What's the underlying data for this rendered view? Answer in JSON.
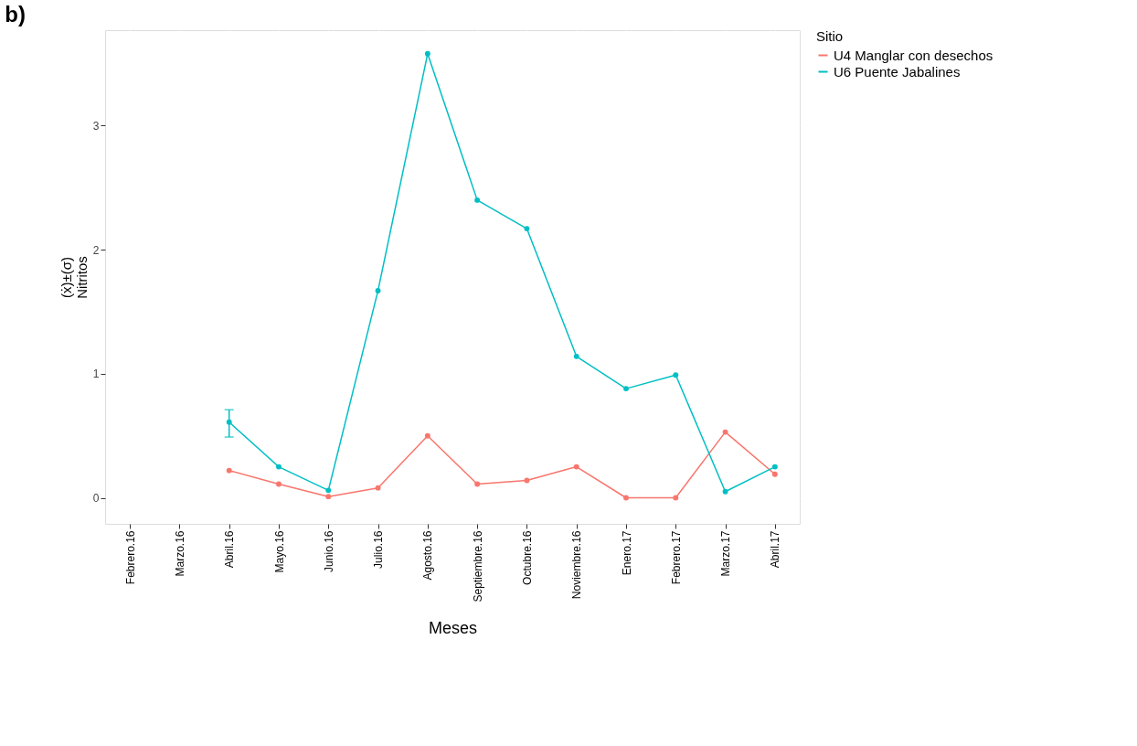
{
  "chart_data": {
    "type": "line",
    "title": "b)",
    "xlabel": "Meses",
    "ylabel": "(ẋ)±(σ)\nNitritos",
    "legend_title": "Sitio",
    "categories": [
      "Febrero.16",
      "Marzo.16",
      "Abril.16",
      "Mayo.16",
      "Junio.16",
      "Julio.16",
      "Agosto.16",
      "Septiembre.16",
      "Octubre.16",
      "Noviembre.16",
      "Enero.17",
      "Febrero.17",
      "Marzo.17",
      "Abril.17"
    ],
    "series": [
      {
        "name": "U4 Manglar con desechos",
        "color": "#f8766d",
        "values": [
          null,
          null,
          0.22,
          0.11,
          0.01,
          0.08,
          0.5,
          0.11,
          0.14,
          0.25,
          0.0,
          0.0,
          0.53,
          0.19
        ]
      },
      {
        "name": "U6 Puente Jabalines",
        "color": "#00bfc4",
        "values": [
          null,
          null,
          0.61,
          0.25,
          0.06,
          1.67,
          3.58,
          2.4,
          2.17,
          1.14,
          0.88,
          0.99,
          0.05,
          0.25
        ],
        "errors": [
          null,
          null,
          [
            0.49,
            0.71
          ],
          null,
          null,
          null,
          null,
          null,
          null,
          null,
          null,
          null,
          null,
          null
        ]
      }
    ],
    "ylim": [
      -0.21,
      3.77
    ],
    "yticks": [
      0,
      1,
      2,
      3
    ],
    "grid": true,
    "legend": "right",
    "marker": "circle",
    "line_style": "solid"
  }
}
